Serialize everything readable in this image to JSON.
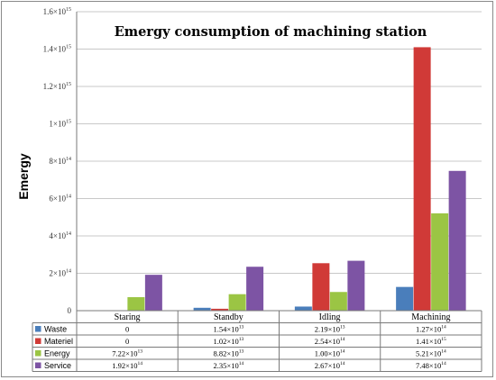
{
  "chart_data": {
    "type": "bar",
    "title": "Emergy consumption of machining station",
    "ylabel": "Emergy",
    "xlabel": "",
    "ylim": [
      0,
      1600000000000000.0
    ],
    "grid": true,
    "legend_placement": "data-table-below",
    "yticks": [
      {
        "value": 0,
        "base": "0",
        "exp": ""
      },
      {
        "value": 200000000000000.0,
        "base": "2×10",
        "exp": "14"
      },
      {
        "value": 400000000000000.0,
        "base": "4×10",
        "exp": "14"
      },
      {
        "value": 600000000000000.0,
        "base": "6×10",
        "exp": "14"
      },
      {
        "value": 800000000000000.0,
        "base": "8×10",
        "exp": "14"
      },
      {
        "value": 1000000000000000.0,
        "base": "1×10",
        "exp": "15"
      },
      {
        "value": 1200000000000000.0,
        "base": "1.2×10",
        "exp": "15"
      },
      {
        "value": 1400000000000000.0,
        "base": "1.4×10",
        "exp": "15"
      },
      {
        "value": 1600000000000000.0,
        "base": "1.6×10",
        "exp": "15"
      }
    ],
    "categories": [
      "Staring",
      "Standby",
      "Idling",
      "Machining"
    ],
    "series": [
      {
        "name": "Waste",
        "color": "#4a7ebb",
        "values": [
          0,
          15400000000000.0,
          21900000000000.0,
          127000000000000.0
        ],
        "labels": [
          {
            "base": "0",
            "exp": ""
          },
          {
            "base": "1.54×10",
            "exp": "13"
          },
          {
            "base": "2.19×10",
            "exp": "13"
          },
          {
            "base": "1.27×10",
            "exp": "14"
          }
        ]
      },
      {
        "name": "Materiel",
        "color": "#d03a37",
        "values": [
          0,
          10200000000000.0,
          254000000000000.0,
          1410000000000000.0
        ],
        "labels": [
          {
            "base": "0",
            "exp": ""
          },
          {
            "base": "1.02×10",
            "exp": "13"
          },
          {
            "base": "2.54×10",
            "exp": "14"
          },
          {
            "base": "1.41×10",
            "exp": "15"
          }
        ]
      },
      {
        "name": "Energy",
        "color": "#9bc544",
        "values": [
          72200000000000.0,
          88200000000000.0,
          100000000000000.0,
          521000000000000.0
        ],
        "labels": [
          {
            "base": "7.22×10",
            "exp": "13"
          },
          {
            "base": "8.82×10",
            "exp": "13"
          },
          {
            "base": "1.00×10",
            "exp": "14"
          },
          {
            "base": "5.21×10",
            "exp": "14"
          }
        ]
      },
      {
        "name": "Service",
        "color": "#7d54a4",
        "values": [
          192000000000000.0,
          235000000000000.0,
          267000000000000.0,
          748000000000000.0
        ],
        "labels": [
          {
            "base": "1.92×10",
            "exp": "14"
          },
          {
            "base": "2.35×10",
            "exp": "14"
          },
          {
            "base": "2.67×10",
            "exp": "14"
          },
          {
            "base": "7.48×10",
            "exp": "14"
          }
        ]
      }
    ]
  }
}
